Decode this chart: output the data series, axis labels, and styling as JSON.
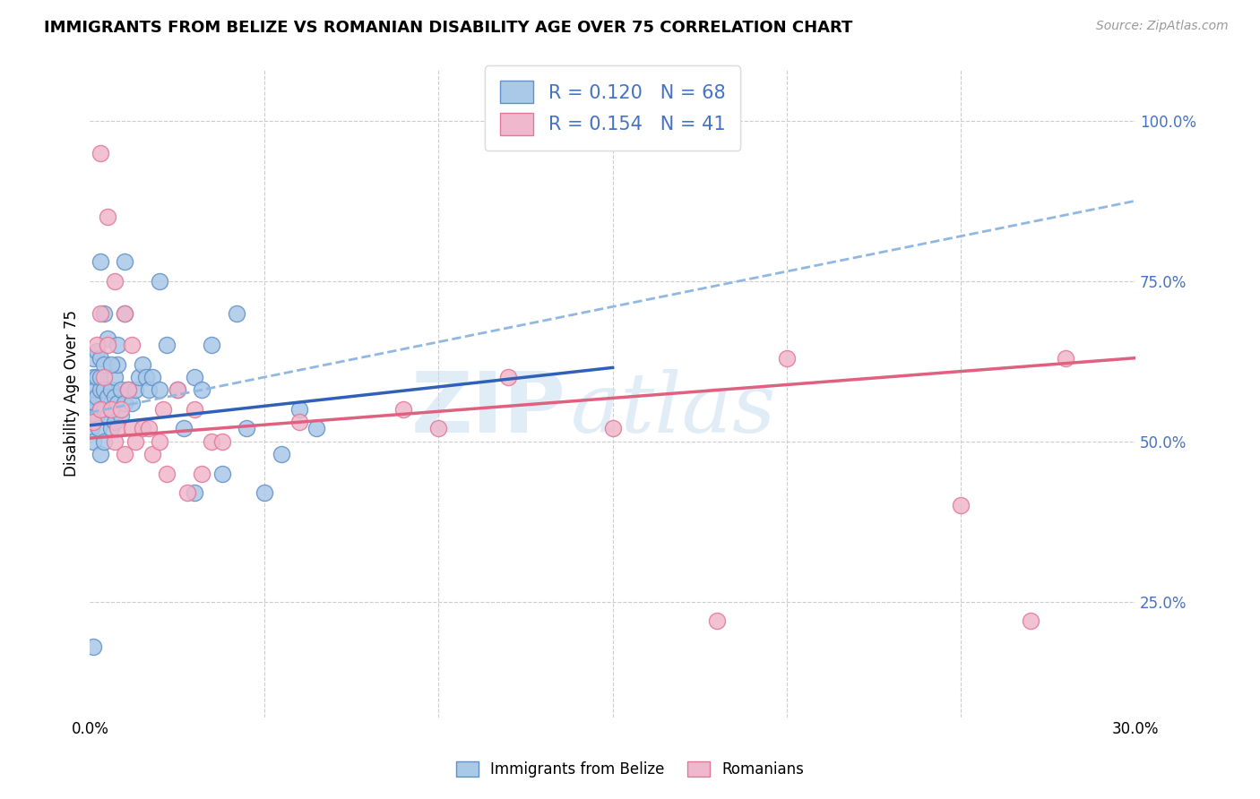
{
  "title": "IMMIGRANTS FROM BELIZE VS ROMANIAN DISABILITY AGE OVER 75 CORRELATION CHART",
  "source": "Source: ZipAtlas.com",
  "ylabel": "Disability Age Over 75",
  "watermark_zip": "ZIP",
  "watermark_atlas": "atlas",
  "belize_color": "#aac8e8",
  "belize_edge_color": "#6090c8",
  "romanian_color": "#f0b8cc",
  "romanian_edge_color": "#e07898",
  "belize_line_color": "#3060b8",
  "romanian_line_color": "#e06080",
  "dashed_line_color": "#90b8e0",
  "R_belize": 0.12,
  "N_belize": 68,
  "R_romanian": 0.154,
  "N_romanian": 41,
  "xlim": [
    0.0,
    0.3
  ],
  "ylim": [
    0.07,
    1.08
  ],
  "belize_x": [
    0.0005,
    0.0005,
    0.001,
    0.001,
    0.001,
    0.001,
    0.001,
    0.0015,
    0.0015,
    0.002,
    0.002,
    0.002,
    0.002,
    0.0025,
    0.003,
    0.003,
    0.003,
    0.003,
    0.003,
    0.004,
    0.004,
    0.004,
    0.004,
    0.005,
    0.005,
    0.005,
    0.006,
    0.006,
    0.006,
    0.007,
    0.007,
    0.007,
    0.008,
    0.008,
    0.009,
    0.009,
    0.01,
    0.01,
    0.011,
    0.012,
    0.013,
    0.014,
    0.015,
    0.016,
    0.017,
    0.018,
    0.02,
    0.022,
    0.025,
    0.027,
    0.03,
    0.032,
    0.035,
    0.038,
    0.042,
    0.045,
    0.05,
    0.055,
    0.06,
    0.065,
    0.01,
    0.02,
    0.001,
    0.03,
    0.006,
    0.008,
    0.003,
    0.004
  ],
  "belize_y": [
    0.52,
    0.55,
    0.54,
    0.57,
    0.6,
    0.63,
    0.5,
    0.56,
    0.58,
    0.54,
    0.57,
    0.6,
    0.64,
    0.52,
    0.55,
    0.58,
    0.6,
    0.63,
    0.48,
    0.55,
    0.58,
    0.62,
    0.5,
    0.54,
    0.57,
    0.66,
    0.55,
    0.58,
    0.52,
    0.6,
    0.57,
    0.53,
    0.56,
    0.62,
    0.58,
    0.54,
    0.56,
    0.7,
    0.58,
    0.56,
    0.58,
    0.6,
    0.62,
    0.6,
    0.58,
    0.6,
    0.58,
    0.65,
    0.58,
    0.52,
    0.6,
    0.58,
    0.65,
    0.45,
    0.7,
    0.52,
    0.42,
    0.48,
    0.55,
    0.52,
    0.78,
    0.75,
    0.18,
    0.42,
    0.62,
    0.65,
    0.78,
    0.7
  ],
  "romanian_x": [
    0.001,
    0.002,
    0.003,
    0.003,
    0.004,
    0.005,
    0.006,
    0.007,
    0.008,
    0.009,
    0.01,
    0.011,
    0.012,
    0.013,
    0.015,
    0.017,
    0.018,
    0.02,
    0.021,
    0.022,
    0.025,
    0.028,
    0.03,
    0.032,
    0.035,
    0.038,
    0.06,
    0.09,
    0.1,
    0.12,
    0.15,
    0.2,
    0.25,
    0.27,
    0.003,
    0.005,
    0.007,
    0.01,
    0.012,
    0.18,
    0.28
  ],
  "romanian_y": [
    0.53,
    0.65,
    0.55,
    0.7,
    0.6,
    0.65,
    0.55,
    0.5,
    0.52,
    0.55,
    0.48,
    0.58,
    0.52,
    0.5,
    0.52,
    0.52,
    0.48,
    0.5,
    0.55,
    0.45,
    0.58,
    0.42,
    0.55,
    0.45,
    0.5,
    0.5,
    0.53,
    0.55,
    0.52,
    0.6,
    0.52,
    0.63,
    0.4,
    0.22,
    0.95,
    0.85,
    0.75,
    0.7,
    0.65,
    0.22,
    0.63
  ],
  "belize_line_x0": 0.0,
  "belize_line_x1": 0.15,
  "belize_line_y0": 0.525,
  "belize_line_y1": 0.615,
  "romanian_line_x0": 0.0,
  "romanian_line_x1": 0.3,
  "romanian_line_y0": 0.505,
  "romanian_line_y1": 0.63,
  "dashed_line_x0": 0.0,
  "dashed_line_x1": 0.3,
  "dashed_line_y0": 0.545,
  "dashed_line_y1": 0.875
}
